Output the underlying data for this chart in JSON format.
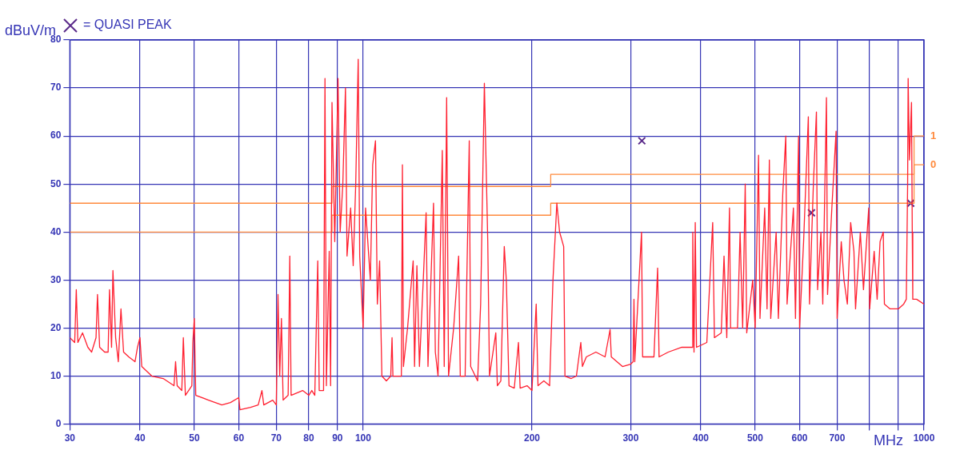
{
  "chart_data": {
    "type": "line",
    "xlabel": "MHz",
    "ylabel": "dBuV/m",
    "log": "x",
    "grid": true,
    "legend": "top left",
    "xlim": [
      30,
      1000
    ],
    "xticks": [
      30,
      40,
      50,
      60,
      70,
      80,
      90,
      100,
      200,
      300,
      400,
      500,
      600,
      700,
      {
        "value": 800,
        "label": null
      },
      {
        "value": 900,
        "label": null
      },
      1000
    ],
    "ylim": [
      0,
      80
    ],
    "yticks": [
      0,
      10,
      20,
      30,
      40,
      50,
      60,
      70,
      80
    ],
    "series": [
      {
        "type": "line",
        "color": "#ff2030",
        "marker": "none",
        "x": [
          30,
          30.6,
          30.8,
          31,
          31.6,
          32.3,
          32.8,
          33.4,
          33.6,
          33.9,
          34.6,
          35.1,
          35.3,
          35.6,
          35.8,
          36.2,
          36.6,
          37,
          37.4,
          38.2,
          39.2,
          39.6,
          40,
          40.3,
          42,
          44,
          46,
          46.3,
          46.6,
          47.5,
          47.8,
          48.2,
          49.5,
          49.7,
          50,
          50.3,
          53,
          56,
          58,
          60,
          60.3,
          63,
          65,
          66,
          66.5,
          69,
          70,
          70.5,
          71,
          71.5,
          72,
          73.5,
          74,
          74.4,
          78,
          80,
          81,
          82,
          83,
          83.5,
          85,
          85.5,
          86,
          87,
          87.5,
          88,
          89,
          90.2,
          91,
          92,
          93,
          93.6,
          95,
          96,
          97,
          98,
          98.6,
          100,
          101,
          103,
          104,
          105.2,
          106,
          107,
          108,
          110,
          112,
          112.6,
          113,
          117,
          117.5,
          118,
          120,
          122.8,
          123.5,
          124.7,
          126,
          128,
          129.5,
          130.5,
          133.5,
          134.5,
          136,
          138.4,
          139.5,
          140.9,
          142,
          145,
          148,
          149,
          152,
          154.6,
          155.5,
          160,
          162,
          164.5,
          166.8,
          168,
          172.4,
          173.5,
          176,
          178.5,
          180,
          182,
          186,
          189.2,
          190.5,
          196,
          200,
          203.5,
          205,
          210,
          215,
          218,
          221.5,
          224,
          227.8,
          229,
          235,
          240,
          244.4,
          246,
          250,
          260,
          270,
          275.6,
          277,
          290,
          300,
          303,
          304,
          305,
          313.6,
          315,
          330,
          335,
          337,
          350,
          370,
          386,
          387,
          389,
          391,
          393,
          410,
          420,
          423,
          435,
          440,
          445,
          450,
          452,
          465,
          470,
          475,
          480,
          483,
          495,
          500,
          507,
          510,
          520,
          525,
          530,
          533,
          545,
          550,
          560,
          567,
          570,
          585,
          590,
          597.5,
          600,
          610,
          622,
          625,
          635,
          643,
          646,
          655,
          660,
          670,
          673,
          685,
          697,
          700,
          712,
          720,
          730,
          740,
          750,
          755,
          770,
          780,
          797,
          800,
          815,
          825,
          835,
          846,
          850,
          870,
          900,
          920,
          930,
          935,
          937,
          942,
          950,
          953,
          955,
          970,
          1000
        ],
        "values": [
          18,
          17,
          28,
          17,
          19,
          16,
          15,
          18,
          27,
          16,
          15,
          15,
          28,
          16,
          32,
          18,
          13,
          24,
          15,
          14,
          13,
          16,
          18,
          12,
          10,
          9.5,
          8,
          13,
          8,
          7,
          18,
          6,
          8,
          17,
          22,
          6,
          5,
          4,
          4.5,
          5.5,
          3,
          3.5,
          4,
          7,
          4,
          5,
          4,
          27,
          10,
          22,
          5,
          6,
          35,
          6,
          7,
          6,
          7,
          6,
          34,
          7,
          7,
          72,
          8,
          36,
          8,
          67,
          38,
          72,
          40,
          50,
          70,
          35,
          45,
          33,
          50,
          76,
          35,
          20,
          45,
          30,
          54,
          59,
          25,
          34,
          10,
          9,
          10,
          18,
          10,
          10,
          54,
          12,
          20,
          34,
          12,
          33,
          12,
          30,
          44,
          12,
          46,
          15,
          10,
          57,
          12,
          68,
          10,
          20,
          35,
          10,
          10,
          59,
          12,
          9,
          25,
          71,
          38,
          10,
          19,
          8,
          9,
          37,
          30,
          8,
          7.5,
          17,
          7.5,
          8,
          7,
          25,
          8,
          9,
          8,
          30,
          46,
          40,
          37,
          10,
          9.5,
          10,
          17,
          12,
          14,
          15,
          14,
          19.7,
          14,
          12,
          12.5,
          13,
          26,
          13,
          40,
          14,
          14,
          32.5,
          14,
          15,
          16,
          16,
          40,
          15,
          42,
          16,
          17,
          42,
          18,
          19,
          35,
          18,
          45,
          20,
          20,
          40,
          20,
          50,
          19,
          30,
          20,
          56,
          22,
          45,
          24,
          55,
          22,
          40,
          22,
          48,
          60,
          25,
          45,
          22,
          60,
          20,
          38,
          64,
          25,
          50,
          65,
          28,
          40,
          25,
          68,
          27,
          45,
          61,
          22,
          38,
          30,
          25,
          42,
          36,
          24,
          40,
          28,
          45,
          24,
          36,
          26,
          38,
          40,
          25,
          24,
          24,
          25,
          26,
          50,
          72,
          55,
          67,
          40,
          26,
          26,
          25
        ]
      },
      {
        "type": "step",
        "name": "1",
        "color": "#ff8a3d",
        "x": [
          30,
          88,
          216,
          960,
          1000
        ],
        "values": [
          46,
          49.5,
          52,
          60,
          60
        ]
      },
      {
        "type": "step",
        "name": "0",
        "color": "#ff8a3d",
        "x": [
          30,
          88,
          216,
          960,
          1000
        ],
        "values": [
          40,
          43.5,
          46,
          54,
          54
        ]
      },
      {
        "type": "scatter",
        "name": "= QUASI PEAK",
        "color": "#5a2a8a",
        "marker": "cross",
        "x": [
          314,
          630,
          947
        ],
        "values": [
          59,
          44,
          46
        ]
      }
    ]
  }
}
